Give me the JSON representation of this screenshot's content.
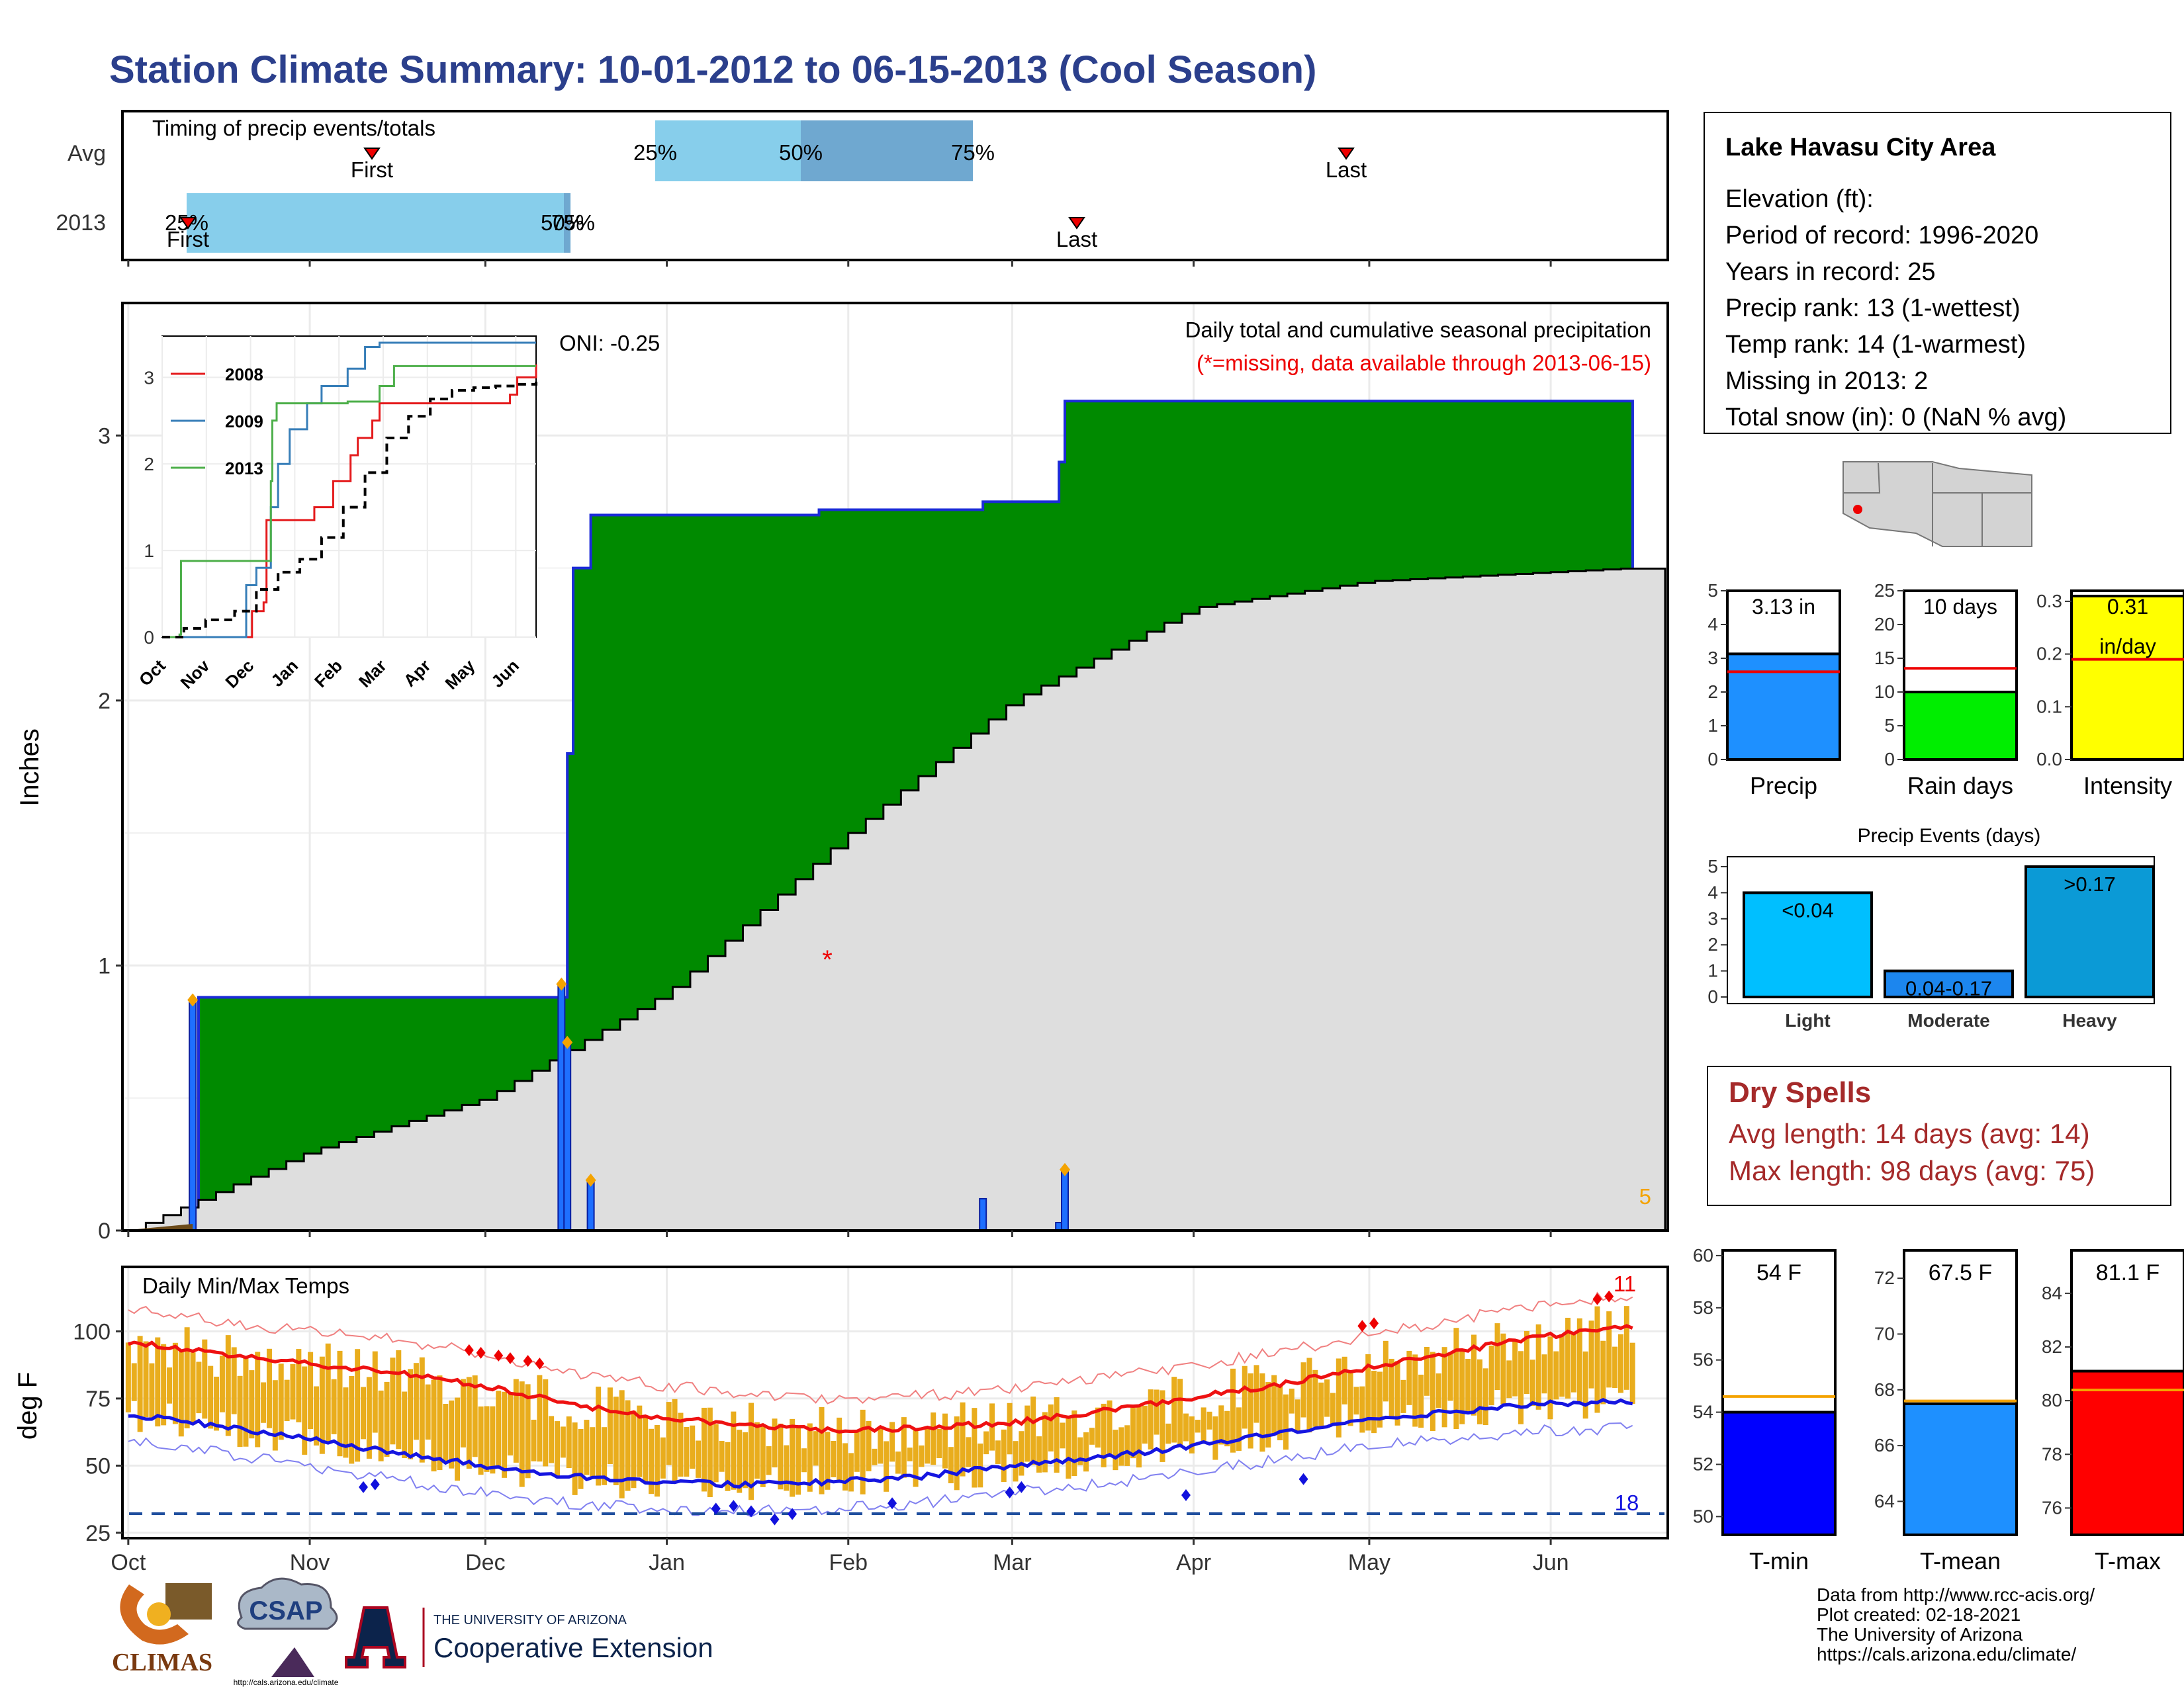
{
  "title": "Station Climate Summary: 10-01-2012 to 06-15-2013 (Cool Season)",
  "colors": {
    "title_blue": "#2b3f8c",
    "green_fill": "#008a00",
    "grey_fill": "#dedede",
    "blue_line": "#1b2bd8",
    "red": "#e11",
    "orange": "#f4a300",
    "gold_bars": "#e9ad1d",
    "precip_blue": "#1e90ff",
    "rain_green": "#00ee00",
    "intensity_yellow": "#ffff00",
    "light_blue": "#00bfff",
    "moderate_blue": "#1c86ee",
    "heavy_blue": "#0b9ad6",
    "tmin_blue": "#0000ff",
    "tmean_blue": "#1e90ff",
    "tmax_red": "#ff0000",
    "dry_red": "#a52a2a"
  },
  "timing": {
    "title": "Timing of precip events/totals",
    "rows": [
      "Avg",
      "2013"
    ],
    "avg": {
      "first": "First",
      "last": "Last",
      "p25": "25%",
      "p50": "50%",
      "p75": "75%"
    },
    "y2013": {
      "first": "First",
      "last": "Last",
      "p25": "25%",
      "p50": "50%",
      "p75": "75%"
    }
  },
  "main_plot": {
    "ylabel": "Inches",
    "yticks": [
      "0",
      "1",
      "2",
      "3"
    ],
    "oni": "ONI: -0.25",
    "subtitle": "Daily total and cumulative seasonal precipitation",
    "missing_note": "(*=missing, data available through 2013-06-15)",
    "count_label": "5"
  },
  "inset": {
    "legend": [
      "2008",
      "2009",
      "2013"
    ],
    "yticks": [
      "0",
      "1",
      "2",
      "3"
    ],
    "xticks": [
      "Oct",
      "Nov",
      "Dec",
      "Jan",
      "Feb",
      "Mar",
      "Apr",
      "May",
      "Jun"
    ]
  },
  "temp_plot": {
    "title": "Daily Min/Max Temps",
    "ylabel": "deg F",
    "yticks": [
      "25",
      "50",
      "75",
      "100"
    ],
    "xticks": [
      "Oct",
      "Nov",
      "Dec",
      "Jan",
      "Feb",
      "Mar",
      "Apr",
      "May",
      "Jun"
    ],
    "hot_count": "11",
    "cold_count": "18"
  },
  "info": {
    "station": "Lake Havasu City Area",
    "lines": [
      "Elevation (ft):",
      "Period of record: 1996-2020",
      "Years in record: 25",
      "Precip rank: 13 (1-wettest)",
      "Temp rank: 14 (1-warmest)",
      "Missing in 2013: 2",
      "Total snow (in): 0 (NaN % avg)"
    ]
  },
  "mini_bars": {
    "precip": {
      "label": "Precip",
      "value_text": "3.13 in",
      "value": 3.13,
      "avg": 2.6,
      "yticks": [
        "0",
        "1",
        "2",
        "3",
        "4",
        "5"
      ],
      "ymax": 5
    },
    "raindays": {
      "label": "Rain days",
      "value_text": "10 days",
      "value": 10,
      "avg": 13.5,
      "yticks": [
        "0",
        "5",
        "10",
        "15",
        "20",
        "25"
      ],
      "ymax": 25
    },
    "intensity": {
      "label": "Intensity",
      "value_text": "0.31",
      "unit": "in/day",
      "value": 0.31,
      "avg": 0.19,
      "yticks": [
        "0.0",
        "0.1",
        "0.2",
        "0.3"
      ],
      "ymax": 0.32
    }
  },
  "events": {
    "title": "Precip Events (days)",
    "yticks": [
      "0",
      "1",
      "2",
      "3",
      "4",
      "5"
    ],
    "bars": [
      {
        "label": "Light",
        "bar_text": "<0.04",
        "value": 4
      },
      {
        "label": "Moderate",
        "bar_text": "0.04-0.17",
        "value": 1
      },
      {
        "label": "Heavy",
        "bar_text": ">0.17",
        "value": 5
      }
    ]
  },
  "dry_spells": {
    "title": "Dry Spells",
    "avg_line": "Avg length: 14 days (avg: 14)",
    "max_line": "Max length: 98 days (avg: 75)"
  },
  "temp_bars": {
    "tmin": {
      "label": "T-min",
      "value_text": "54 F",
      "value": 54,
      "avg": 54.6,
      "yticks": [
        "50",
        "52",
        "54",
        "56",
        "58",
        "60"
      ]
    },
    "tmean": {
      "label": "T-mean",
      "value_text": "67.5 F",
      "value": 67.5,
      "avg": 67.6,
      "yticks": [
        "64",
        "66",
        "68",
        "70",
        "72"
      ]
    },
    "tmax": {
      "label": "T-max",
      "value_text": "81.1 F",
      "value": 81.1,
      "avg": 80.4,
      "yticks": [
        "76",
        "78",
        "80",
        "82",
        "84"
      ]
    }
  },
  "footer": {
    "lines": [
      "Data from http://www.rcc-acis.org/",
      "Plot created: 02-18-2021",
      "The University of Arizona",
      "https://cals.arizona.edu/climate/"
    ],
    "logos": {
      "climas": "CLIMAS",
      "csap": "CSAP",
      "csap_url": "http://cals.arizona.edu/climate",
      "ua_small": "THE UNIVERSITY OF ARIZONA",
      "ua_big": "Cooperative Extension"
    }
  },
  "chart_data": [
    {
      "type": "area",
      "title": "Daily total and cumulative seasonal precipitation",
      "ylabel": "Inches",
      "ylim": [
        0,
        3.5
      ],
      "x_range": [
        "2012-10-01",
        "2013-06-15"
      ],
      "series": [
        {
          "name": "2013",
          "x": [
            "2012-10-01",
            "2012-10-12",
            "2012-10-13",
            "2012-12-14",
            "2012-12-15",
            "2012-12-16",
            "2012-12-19",
            "2013-01-27",
            "2013-02-24",
            "2013-03-09",
            "2013-03-10",
            "2013-06-15"
          ],
          "values": [
            0.0,
            0.03,
            0.88,
            0.88,
            1.8,
            2.5,
            2.7,
            2.72,
            2.75,
            2.9,
            3.13,
            3.13
          ]
        },
        {
          "x": [
            "2012-10-01",
            "2012-11-01",
            "2012-12-01",
            "2013-01-01",
            "2013-02-01",
            "2013-03-01",
            "2013-04-01",
            "2013-05-01",
            "2013-06-15"
          ],
          "values": [
            0.0,
            0.3,
            0.5,
            0.9,
            1.5,
            2.0,
            2.35,
            2.45,
            2.5
          ]
        }
      ],
      "daily_precip": {
        "x": [
          "2012-10-12",
          "2012-12-14",
          "2012-12-15",
          "2012-12-19",
          "2013-02-24",
          "2013-03-09",
          "2013-03-10"
        ],
        "values": [
          0.87,
          0.93,
          0.71,
          0.19,
          0.12,
          0.03,
          0.23
        ]
      }
    },
    {
      "type": "line",
      "ylim": [
        0,
        3.4
      ],
      "series": [
        {
          "name": "2008",
          "x": [
            0,
            40,
            55,
            62,
            70,
            72,
            92,
            105,
            118,
            130,
            135,
            145,
            150,
            230,
            240,
            245,
            258
          ],
          "values": [
            0,
            0,
            0,
            0.3,
            0.4,
            1.35,
            1.35,
            1.5,
            1.8,
            2.1,
            2.3,
            2.5,
            2.7,
            2.7,
            2.8,
            3.0,
            3.15
          ]
        },
        {
          "name": "2009",
          "x": [
            0,
            55,
            58,
            65,
            75,
            80,
            88,
            100,
            110,
            128,
            140,
            150,
            160,
            258
          ],
          "values": [
            0,
            0,
            0.6,
            0.8,
            1.5,
            2.0,
            2.4,
            2.7,
            2.9,
            3.1,
            3.35,
            3.4,
            3.4,
            3.4
          ]
        },
        {
          "name": "2013",
          "x": [
            0,
            12,
            13,
            74,
            75,
            76,
            79,
            128,
            150,
            160,
            258
          ],
          "values": [
            0,
            0.03,
            0.88,
            0.88,
            1.8,
            2.5,
            2.7,
            2.72,
            2.9,
            3.13,
            3.13
          ]
        },
        {
          "x": [
            0,
            15,
            30,
            50,
            65,
            80,
            95,
            110,
            125,
            140,
            155,
            170,
            185,
            200,
            215,
            230,
            245,
            258
          ],
          "values": [
            0,
            0.1,
            0.2,
            0.3,
            0.55,
            0.75,
            0.9,
            1.15,
            1.5,
            1.9,
            2.3,
            2.55,
            2.75,
            2.85,
            2.88,
            2.9,
            2.92,
            2.95
          ]
        }
      ]
    },
    {
      "type": "line",
      "title": "Daily Min/Max Temps",
      "ylabel": "deg F",
      "ylim": [
        25,
        120
      ],
      "series": [
        {
          "x": [
            0,
            15,
            30,
            45,
            60,
            75,
            90,
            105,
            120,
            135,
            150,
            165,
            180,
            195,
            210,
            225,
            240,
            257
          ],
          "values": [
            96,
            92,
            88,
            85,
            80,
            73,
            68,
            65,
            63,
            64,
            66,
            70,
            75,
            80,
            86,
            92,
            98,
            102
          ]
        },
        {
          "x": [
            0,
            15,
            30,
            45,
            60,
            75,
            90,
            105,
            120,
            135,
            150,
            165,
            180,
            195,
            210,
            225,
            240,
            257
          ],
          "values": [
            69,
            65,
            60,
            55,
            50,
            46,
            44,
            43,
            44,
            46,
            50,
            53,
            57,
            62,
            67,
            70,
            73,
            74
          ]
        }
      ]
    },
    {
      "type": "bar",
      "categories": [
        "Light",
        "Moderate",
        "Heavy"
      ],
      "values": [
        4,
        1,
        5
      ],
      "title": "Precip Events (days)"
    }
  ]
}
